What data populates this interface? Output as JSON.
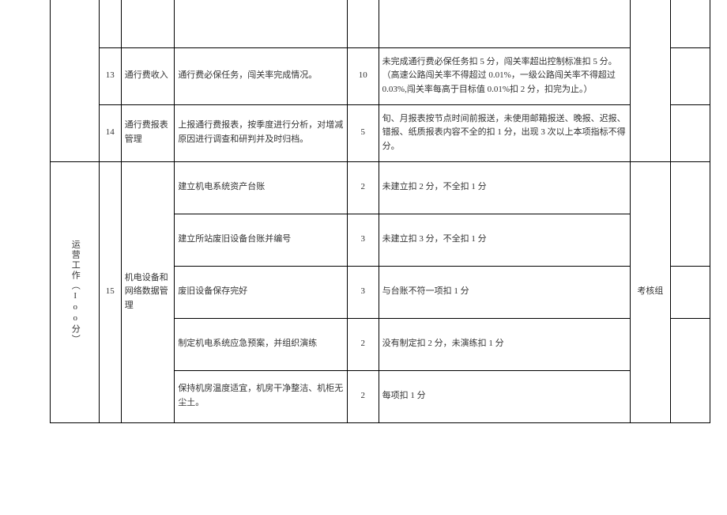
{
  "section": {
    "label": "运营工作（Ioo分）"
  },
  "rows": [
    {
      "num": "13",
      "item": "通行费收入",
      "desc": "通行费必保任务，闯关率完成情况。",
      "score": "10",
      "criteria": "未完成通行费必保任务扣 5 分，闯关率超出控制标准扣 5 分。（高速公路闯关率不得超过 0.01%，一级公路闯关率不得超过 0.03%,闯关率每高于目标值 0.01%扣 2 分，扣完为止。）"
    },
    {
      "num": "14",
      "item": "通行费报表管理",
      "desc": "上报通行费报表，按季度进行分析，对增减原因进行调查和研判并及时归档。",
      "score": "5",
      "criteria": "旬、月报表按节点时间前报送，未使用邮箱报送、晚报、迟报、错报、纸质报表内容不全的扣 1 分，出现 3 次以上本项指标不得分。"
    },
    {
      "num": "15",
      "item": "机电设备和网络数据管理",
      "subrows": [
        {
          "desc": "建立机电系统资产台账",
          "score": "2",
          "criteria": "未建立扣 2 分，不全扣 1 分"
        },
        {
          "desc": "建立所站废旧设备台账并编号",
          "score": "3",
          "criteria": "未建立扣 3 分，不全扣 1 分"
        },
        {
          "desc": "废旧设备保存完好",
          "score": "3",
          "criteria": "与台账不符一项扣 1 分"
        },
        {
          "desc": "制定机电系统应急预案，并组织演练",
          "score": "2",
          "criteria": "没有制定扣 2 分，未演练扣 1 分"
        },
        {
          "desc": "保持机房温度适宜，机房干净整洁、机柜无尘土。",
          "score": "2",
          "criteria": "每项扣 1 分"
        }
      ],
      "group": "考核组"
    }
  ]
}
